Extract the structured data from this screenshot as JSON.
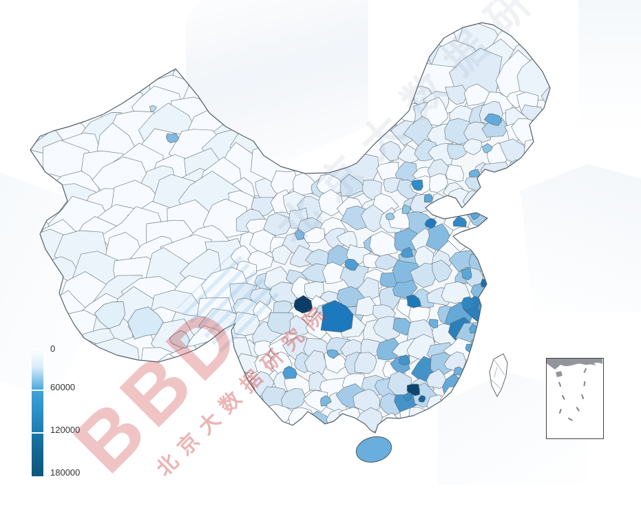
{
  "legend": {
    "ticks": [
      "0",
      "60000",
      "120000",
      "180000"
    ],
    "scale_colors": [
      "#ffffff",
      "#49a6dc",
      "#1e7bb0",
      "#0d587e"
    ],
    "position": "bottom-left"
  },
  "watermark": {
    "diagonal_text": "北京大数据研究院",
    "logo_text": "BBD",
    "logo_caption": "北京大数据研究院",
    "logo_color": "#cd3a3a"
  },
  "map": {
    "border_color": "#5d6a73",
    "sea_color": "#ffffff",
    "land_base_color": "#f4f8fb",
    "hainan_color": "#6aaede",
    "taiwan_color": "#ffffff",
    "palette": [
      "#f7fbff",
      "#ecf4fb",
      "#dfecf7",
      "#d0e3f2",
      "#bcd8ee",
      "#a3cbe8",
      "#85bbe0",
      "#66a9d8",
      "#4493c8",
      "#2b7fba"
    ]
  },
  "chart_data": {
    "type": "heatmap",
    "subtype": "choropleth-map",
    "region_shown": "China, prefecture-level divisions",
    "legend_ticks": [
      0,
      60000,
      120000,
      180000
    ],
    "value_range": [
      0,
      180000
    ],
    "colorscale": [
      "#ffffff",
      "#49a6dc",
      "#1e7bb0",
      "#0d587e"
    ],
    "legend_position": "bottom-left",
    "inset": "south-china-sea",
    "notes": "white-to-dark-blue choropleth; darkest regions around Chengdu, Chongqing, Wuhan, Beijing, Qingdao, Shanghai, Hangzhou, Guangzhou, Shenzhen"
  }
}
